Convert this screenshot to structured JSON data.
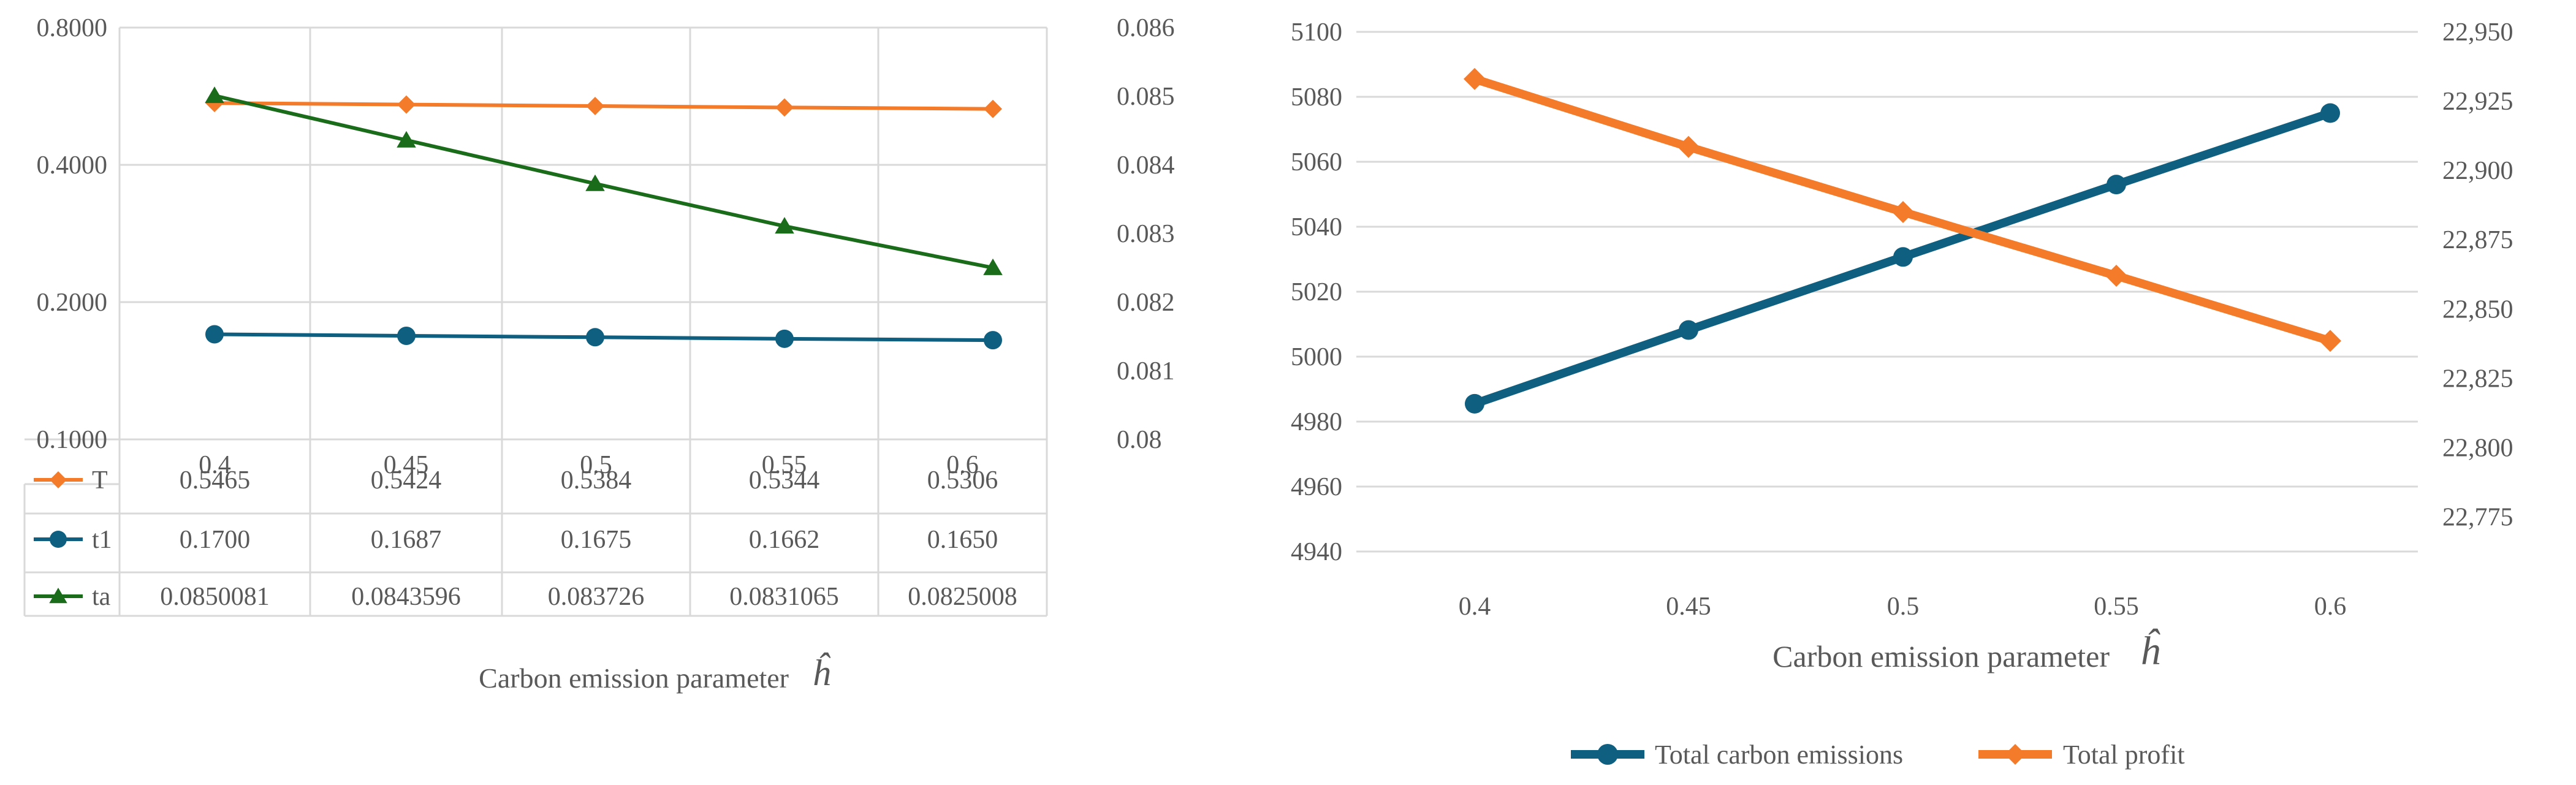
{
  "chart_data": [
    {
      "type": "line",
      "categories": [
        "0.4",
        "0.45",
        "0.5",
        "0.55",
        "0.6"
      ],
      "xlabel": "Carbon emission parameter",
      "xlabel_symbol": "ĥ",
      "y_left": {
        "scale": "log",
        "ylim": [
          0.1,
          0.8
        ],
        "tick_values": [
          0.1,
          0.2,
          0.4,
          0.8
        ],
        "tick_labels": [
          "0.1000",
          "0.2000",
          "0.4000",
          "0.8000"
        ]
      },
      "y_right": {
        "ylim": [
          0.08,
          0.086
        ],
        "tick_values": [
          0.08,
          0.081,
          0.082,
          0.083,
          0.084,
          0.085,
          0.086
        ],
        "tick_labels": [
          "0.08",
          "0.081",
          "0.082",
          "0.083",
          "0.084",
          "0.085",
          "0.086"
        ]
      },
      "grid": true,
      "legend": "data-table",
      "series": [
        {
          "name": "T",
          "axis": "left",
          "color": "#F47B2A",
          "marker": "diamond",
          "values": [
            0.5465,
            0.5424,
            0.5384,
            0.5344,
            0.5306
          ],
          "labels": [
            "0.5465",
            "0.5424",
            "0.5384",
            "0.5344",
            "0.5306"
          ]
        },
        {
          "name": "t1",
          "axis": "left",
          "color": "#0F5F80",
          "marker": "circle",
          "values": [
            0.17,
            0.1687,
            0.1675,
            0.1662,
            0.165
          ],
          "labels": [
            "0.1700",
            "0.1687",
            "0.1675",
            "0.1662",
            "0.1650"
          ]
        },
        {
          "name": "ta",
          "axis": "right",
          "color": "#1A6B1A",
          "marker": "triangle",
          "values": [
            0.0850081,
            0.0843596,
            0.083726,
            0.0831065,
            0.0825008
          ],
          "labels": [
            "0.0850081",
            "0.0843596",
            "0.083726",
            "0.0831065",
            "0.0825008"
          ]
        }
      ]
    },
    {
      "type": "line",
      "categories": [
        "0.4",
        "0.45",
        "0.5",
        "0.55",
        "0.6"
      ],
      "xlabel": "Carbon emission parameter",
      "xlabel_symbol": "ĥ",
      "y_left": {
        "ylim": [
          4940,
          5100
        ],
        "tick_values": [
          4940,
          4960,
          4980,
          5000,
          5020,
          5040,
          5060,
          5080,
          5100
        ],
        "tick_labels": [
          "4940",
          "4960",
          "4980",
          "5000",
          "5020",
          "5040",
          "5060",
          "5080",
          "5100"
        ]
      },
      "y_right": {
        "ylim": [
          22762.5,
          22950
        ],
        "tick_values": [
          22775,
          22800,
          22825,
          22850,
          22875,
          22900,
          22925,
          22950
        ],
        "tick_labels": [
          "22,775",
          "22,800",
          "22,825",
          "22,850",
          "22,875",
          "22,900",
          "22,925",
          "22,950"
        ]
      },
      "grid": true,
      "legend": "bottom",
      "series": [
        {
          "name": "Total carbon emissions",
          "axis": "left",
          "color": "#0F5F80",
          "marker": "circle",
          "values": [
            4985.5,
            5008.2,
            5030.7,
            5053,
            5075
          ]
        },
        {
          "name": "Total profit",
          "axis": "right",
          "color": "#F47B2A",
          "marker": "diamond",
          "values": [
            22933,
            22908.5,
            22885,
            22862,
            22838.5
          ]
        }
      ]
    }
  ]
}
